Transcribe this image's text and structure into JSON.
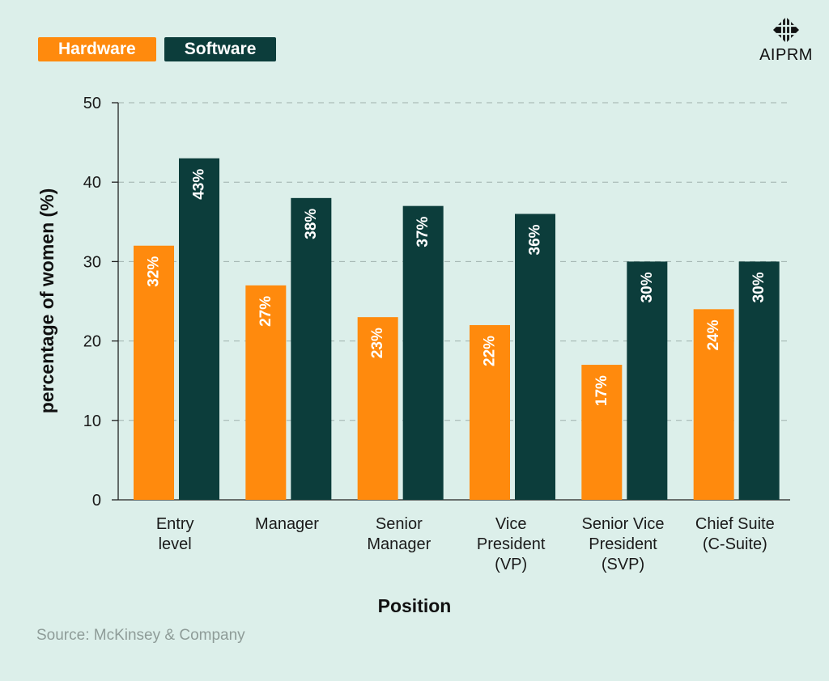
{
  "chart_data": {
    "type": "bar",
    "title": "",
    "xlabel": "Position",
    "ylabel": "percentage of women (%)",
    "ylim": [
      0,
      50
    ],
    "yticks": [
      0,
      10,
      20,
      30,
      40,
      50
    ],
    "categories": [
      [
        "Entry",
        "level"
      ],
      [
        "Manager"
      ],
      [
        "Senior",
        "Manager"
      ],
      [
        "Vice",
        "President",
        "(VP)"
      ],
      [
        "Senior Vice",
        "President",
        "(SVP)"
      ],
      [
        "Chief Suite",
        "(C-Suite)"
      ]
    ],
    "series": [
      {
        "name": "Hardware",
        "color": "#ff8a0d",
        "values": [
          32,
          27,
          23,
          22,
          17,
          24
        ],
        "labels": [
          "32%",
          "27%",
          "23%",
          "22%",
          "17%",
          "24%"
        ]
      },
      {
        "name": "Software",
        "color": "#0c3d3b",
        "values": [
          43,
          38,
          37,
          36,
          30,
          30
        ],
        "labels": [
          "43%",
          "38%",
          "37%",
          "36%",
          "30%",
          "30%"
        ]
      }
    ],
    "grid": true,
    "legend": "top-left"
  },
  "legend": {
    "hardware": "Hardware",
    "software": "Software"
  },
  "brand": {
    "logo_text": "AIPRM",
    "logo_icon": "aiprm-logo-icon"
  },
  "source": "Source: McKinsey & Company"
}
